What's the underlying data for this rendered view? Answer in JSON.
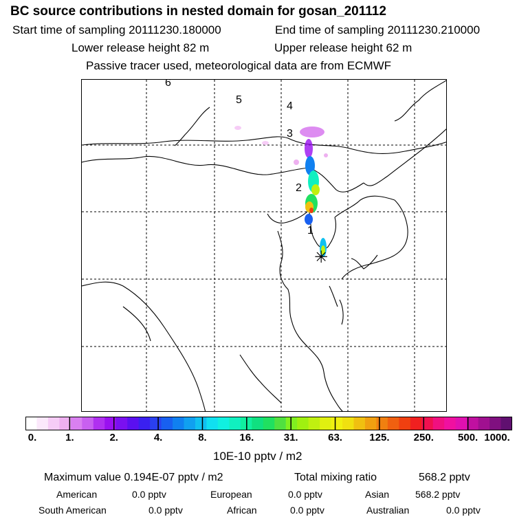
{
  "header": {
    "title": "BC  source contributions in nested domain for gosan_201112",
    "start_time": "Start time of sampling 20111230.180000",
    "end_time": "End time of sampling 20111230.210000",
    "lower_release": "Lower release height   82 m",
    "upper_release": "Upper release height   62 m",
    "note": "Passive tracer used, meteorological data are from ECMWF"
  },
  "map": {
    "trajectory_labels": [
      "1",
      "2",
      "3",
      "4",
      "5",
      "6"
    ],
    "receptor_symbol": "✳",
    "colors": {
      "land_line": "#000000",
      "grid_line": "#000000"
    }
  },
  "colorbar": {
    "ticks": [
      "0.",
      "1.",
      "2.",
      "4.",
      "8.",
      "16.",
      "31.",
      "63.",
      "125.",
      "250.",
      "500.",
      "1000."
    ],
    "colors": [
      "#ffffff",
      "#fbe8fb",
      "#f6ccf6",
      "#eeb0f0",
      "#d980f0",
      "#c860f0",
      "#b030f0",
      "#9a10f0",
      "#7a10f0",
      "#5a10f0",
      "#3a20f0",
      "#2a40f0",
      "#1860f0",
      "#1080f0",
      "#10a0f0",
      "#10c0f0",
      "#10e0f0",
      "#10f0e0",
      "#10f0c0",
      "#10f0a0",
      "#10e080",
      "#20e060",
      "#50e040",
      "#80f020",
      "#a0f010",
      "#c0f010",
      "#e0f010",
      "#f0f010",
      "#f0e010",
      "#f0c010",
      "#f0a010",
      "#f08010",
      "#f06010",
      "#f04010",
      "#f02020",
      "#f01050",
      "#f01080",
      "#f010a0",
      "#e010b0",
      "#c010a0",
      "#a01090",
      "#801080",
      "#601070"
    ],
    "unit": "10E-10 pptv / m2"
  },
  "summary": {
    "max_label": "Maximum value  0.194E-07 pptv / m2",
    "total_label": "Total mixing ratio",
    "total_value": "568.2 pptv",
    "american_label": "American",
    "american_value": "0.0 pptv",
    "european_label": "European",
    "european_value": "0.0 pptv",
    "asian_label": "Asian",
    "asian_value": "568.2 pptv",
    "southam_label": "South American",
    "southam_value": "0.0 pptv",
    "african_label": "African",
    "african_value": "0.0 pptv",
    "australian_label": "Australian",
    "australian_value": "0.0 pptv"
  }
}
